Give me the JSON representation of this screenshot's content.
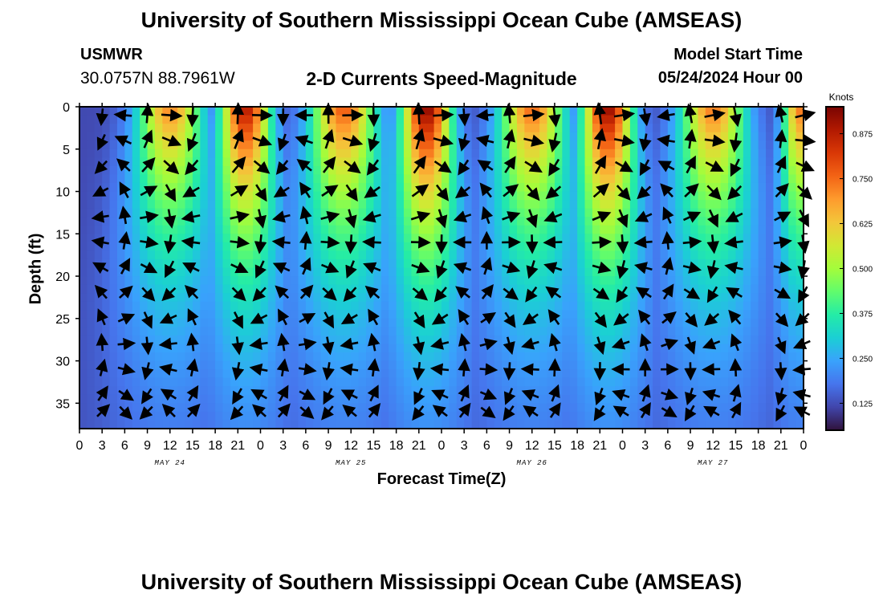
{
  "header": {
    "title": "University of Southern Mississippi Ocean Cube (AMSEAS)",
    "station": "USMWR",
    "coords": "30.0757N  88.7961W",
    "subtitle": "2-D Currents Speed-Magnitude",
    "model_start_label": "Model Start Time",
    "model_start_value": "05/24/2024 Hour 00"
  },
  "footer": {
    "title": "University of Southern Mississippi Ocean Cube (AMSEAS)"
  },
  "chart_data": {
    "type": "heatmap",
    "title": "2-D Currents Speed-Magnitude",
    "xlabel": "Forecast Time(Z)",
    "ylabel": "Depth (ft)",
    "x_ticks": [
      "0",
      "3",
      "6",
      "9",
      "12",
      "15",
      "18",
      "21",
      "0",
      "3",
      "6",
      "9",
      "12",
      "15",
      "18",
      "21",
      "0",
      "3",
      "6",
      "9",
      "12",
      "15",
      "18",
      "21",
      "0",
      "3",
      "6",
      "9",
      "12",
      "15",
      "18",
      "21",
      "0"
    ],
    "date_labels": [
      {
        "label": "MAY 24",
        "hour": 12
      },
      {
        "label": "MAY 25",
        "hour": 36
      },
      {
        "label": "MAY 26",
        "hour": 60
      },
      {
        "label": "MAY 27",
        "hour": 84
      }
    ],
    "xlim_hours": [
      0,
      96
    ],
    "y_ticks": [
      0,
      5,
      10,
      15,
      20,
      25,
      30,
      35
    ],
    "ylim_ft": [
      0,
      38
    ],
    "colorbar": {
      "label": "Knots",
      "ticks": [
        0.125,
        0.25,
        0.375,
        0.5,
        0.625,
        0.75,
        0.875
      ],
      "tick_labels": [
        "0.125",
        "0.250",
        "0.375",
        "0.500",
        "0.625",
        "0.750",
        "0.875"
      ],
      "range": [
        0.05,
        0.95
      ],
      "colors": [
        "#30123b",
        "#4145ab",
        "#4675ed",
        "#39a2fc",
        "#1bcfd4",
        "#24eca6",
        "#61fc6c",
        "#a4fc3b",
        "#d1e834",
        "#f3c63a",
        "#fe9b2d",
        "#f36315",
        "#d93806",
        "#b11901",
        "#7a0402"
      ]
    },
    "speed_peaks": [
      {
        "hour": 3.5,
        "peak": 0.0,
        "width": 1.2
      },
      {
        "hour": 12,
        "peak": 0.72,
        "width": 4.2
      },
      {
        "hour": 22,
        "peak": 0.9,
        "width": 3.2
      },
      {
        "hour": 35,
        "peak": 0.78,
        "width": 4.2
      },
      {
        "hour": 46,
        "peak": 0.95,
        "width": 3.2
      },
      {
        "hour": 60,
        "peak": 0.76,
        "width": 4.2
      },
      {
        "hour": 70,
        "peak": 0.94,
        "width": 3.2
      },
      {
        "hour": 84,
        "peak": 0.74,
        "width": 4.2
      },
      {
        "hour": 95.5,
        "peak": 0.74,
        "width": 2.2
      }
    ],
    "depth_decay_ft": 24,
    "vector_hours": [
      3,
      6,
      9,
      12,
      15,
      21,
      24,
      27,
      30,
      33,
      36,
      39,
      45,
      48,
      51,
      54,
      57,
      60,
      63,
      69,
      72,
      75,
      78,
      81,
      84,
      87,
      93,
      96
    ],
    "vector_depths_ft": [
      1,
      4,
      7,
      10,
      13,
      16,
      19,
      22,
      25,
      28,
      31,
      34,
      36
    ]
  }
}
